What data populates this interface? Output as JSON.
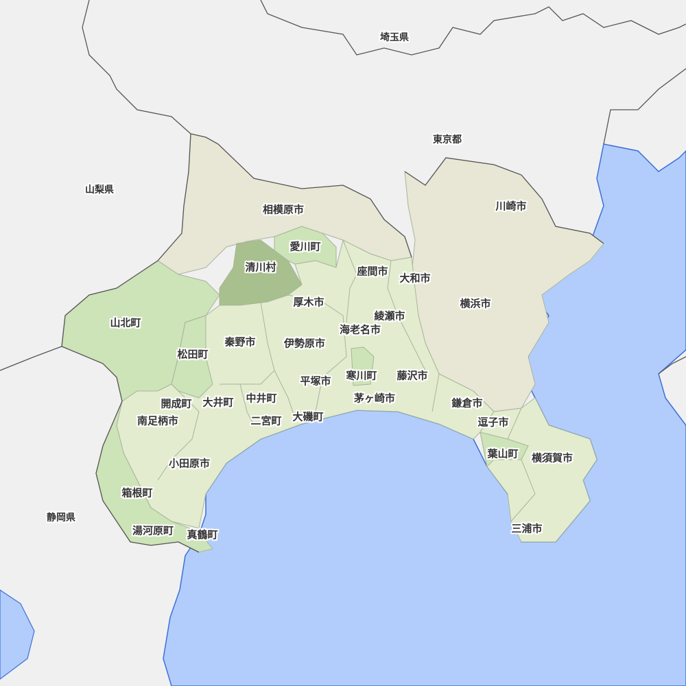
{
  "colors": {
    "background": "#f0f0f0",
    "sea": "#b2cdfb",
    "coast": "#3d6fd8",
    "city_beige": "#e8e6d5",
    "town_light": "#e3eccf",
    "town_mid": "#cde3b8",
    "village_dark": "#a8bf8e"
  },
  "prefectures": {
    "saitama": "埼玉県",
    "tokyo": "東京都",
    "yamanashi": "山梨県",
    "shizuoka": "静岡県"
  },
  "municipalities": {
    "sagamihara": "相模原市",
    "kawasaki": "川崎市",
    "aikawa": "愛川町",
    "kiyokawa": "清川村",
    "zama": "座間市",
    "yamato": "大和市",
    "atsugi": "厚木市",
    "yokohama": "横浜市",
    "yamakita": "山北町",
    "ayase": "綾瀬市",
    "ebina": "海老名市",
    "hadano": "秦野市",
    "isehara": "伊勢原市",
    "matsuda": "松田町",
    "samukawa": "寒川町",
    "fujisawa": "藤沢市",
    "hiratsuka": "平塚市",
    "kaisei": "開成町",
    "oi": "大井町",
    "nakai": "中井町",
    "chigasaki": "茅ヶ崎市",
    "kamakura": "鎌倉市",
    "minamiashigara": "南足柄市",
    "ninomiya": "二宮町",
    "oiso": "大磯町",
    "zushi": "逗子市",
    "hayama": "葉山町",
    "yokosuka": "横須賀市",
    "odawara": "小田原市",
    "hakone": "箱根町",
    "miura": "三浦市",
    "yugawara": "湯河原町",
    "manazuru": "真鶴町"
  }
}
